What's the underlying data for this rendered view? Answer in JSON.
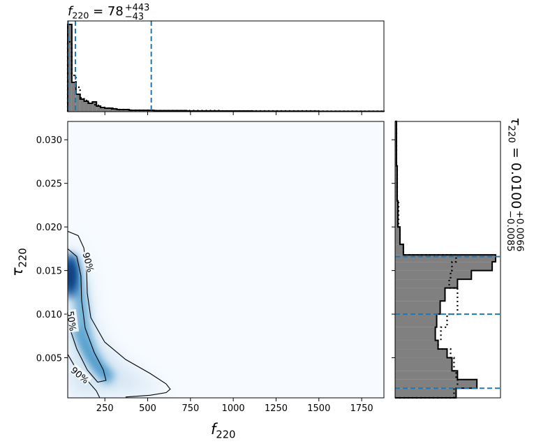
{
  "chart_data": [
    {
      "type": "density",
      "xlabel": {
        "symbol": "f",
        "sub": "220"
      },
      "ylabel": {
        "symbol": "τ",
        "sub": "220"
      },
      "xlim": [
        33,
        1880
      ],
      "ylim": [
        0.0004,
        0.0321
      ],
      "xticks": [
        250,
        500,
        750,
        1000,
        1250,
        1500,
        1750
      ],
      "yticks": [
        0.005,
        {
          "value": 0.01,
          "label": "0.010"
        },
        0.015,
        {
          "value": 0.02,
          "label": "0.020"
        },
        0.025,
        {
          "value": 0.03,
          "label": "0.030"
        }
      ],
      "contours": [
        {
          "label": "50%",
          "x": [
            33,
            86,
            110,
            114,
            135,
            188,
            241,
            257,
            208,
            147,
            86,
            45,
            33
          ],
          "y": [
            0.0175,
            0.0166,
            0.0144,
            0.0116,
            0.0084,
            0.0056,
            0.0036,
            0.0024,
            0.0022,
            0.0036,
            0.006,
            0.0084,
            0.0092
          ]
        },
        {
          "label": "90%",
          "x": [
            33,
            94,
            127,
            143,
            147,
            168,
            249,
            371,
            514,
            608,
            632,
            608,
            514,
            371,
            null,
            33,
            86,
            147,
            200,
            220
          ],
          "y": [
            0.0195,
            0.019,
            0.0176,
            0.0152,
            0.0124,
            0.0096,
            0.0068,
            0.0048,
            0.0032,
            0.002,
            0.0014,
            0.001,
            0.0007,
            0.0005,
            null,
            0.0054,
            0.0036,
            0.0024,
            0.0012,
            0.0004
          ]
        }
      ]
    },
    {
      "type": "histogram",
      "title": {
        "symbol": "f",
        "sub": "220",
        "value": " = 78",
        "sup": "+443",
        "inf": "−43"
      },
      "bins": [
        33,
        57,
        81,
        105,
        129,
        153,
        177,
        201,
        225,
        249,
        273,
        297,
        321,
        345,
        369,
        393,
        417,
        441,
        489,
        537,
        633,
        729,
        921,
        1113,
        1497,
        1880
      ],
      "ylim": [
        0,
        130
      ],
      "quantiles": [
        35,
        78,
        521
      ],
      "series": [
        {
          "color": "#808080",
          "fill": true,
          "values": [
            125,
            42,
            25,
            18,
            15,
            12,
            14,
            8,
            6,
            5,
            5,
            4,
            3,
            3,
            3,
            2,
            2,
            2,
            2,
            1.5,
            1.5,
            1,
            1,
            0.7,
            0.5
          ]
        },
        {
          "color": "#000000",
          "fill": false,
          "values": [
            100,
            52,
            35,
            20,
            16,
            13,
            10,
            9,
            6,
            5,
            4,
            4,
            3,
            3,
            3,
            2,
            2,
            2,
            2,
            1.5,
            1.5,
            1.5,
            1,
            1,
            0.7
          ]
        }
      ]
    },
    {
      "type": "histogram",
      "orientation": "horizontal",
      "label": {
        "symbol": "τ",
        "sub": "220",
        "value": " = 0.0100",
        "sup": "+0.0066",
        "inf": "−0.0085"
      },
      "bins": [
        0.0004,
        0.0015,
        0.0025,
        0.0035,
        0.005,
        0.006,
        0.007,
        0.0085,
        0.01,
        0.0115,
        0.013,
        0.014,
        0.015,
        0.016,
        0.0168,
        0.018,
        0.02,
        0.023,
        0.027,
        0.0321
      ],
      "xlim": [
        0,
        152
      ],
      "quantiles": [
        0.0015,
        0.01,
        0.0166
      ],
      "series": [
        {
          "color": "#808080",
          "fill": true,
          "values": [
            88,
            118,
            90,
            82,
            75,
            62,
            58,
            60,
            65,
            72,
            90,
            110,
            140,
            145,
            12,
            7,
            4,
            3,
            2
          ]
        },
        {
          "color": "#000000",
          "fill": false,
          "values": [
            85,
            90,
            88,
            85,
            80,
            62,
            66,
            75,
            90,
            90,
            78,
            80,
            82,
            88,
            12,
            7,
            5,
            3,
            2
          ]
        }
      ]
    }
  ]
}
